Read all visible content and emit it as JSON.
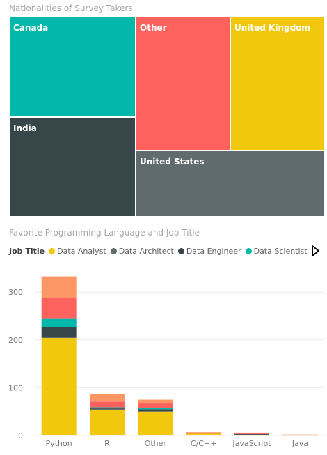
{
  "treemap": {
    "title": "Nationalities of Survey Takers",
    "tiles": [
      {
        "name": "Canada",
        "color": "#01b8aa"
      },
      {
        "name": "India",
        "color": "#374649"
      },
      {
        "name": "Other",
        "color": "#fd625e"
      },
      {
        "name": "United Kingdom",
        "color": "#f2c80f"
      },
      {
        "name": "United States",
        "color": "#5f6b6d"
      }
    ]
  },
  "legend": {
    "title": "Job Title",
    "items": [
      {
        "label": "Data Analyst",
        "color": "#f2c80f"
      },
      {
        "label": "Data Architect",
        "color": "#5f6b6d"
      },
      {
        "label": "Data Engineer",
        "color": "#374649"
      },
      {
        "label": "Data Scientist",
        "color": "#01b8aa"
      }
    ]
  },
  "chart_data": {
    "type": "bar",
    "stacked": true,
    "title": "Favorite Programming Language and Job Title",
    "legend_title": "Job Title",
    "legend_position": "top-left",
    "grid": true,
    "ylim": [
      0,
      340
    ],
    "yticks": [
      0,
      100,
      200,
      300
    ],
    "categories": [
      "Python",
      "R",
      "Other",
      "C/C++",
      "JavaScript",
      "Java"
    ],
    "series": [
      {
        "name": "Data Analyst",
        "color": "#f2c80f",
        "values": [
          204,
          54,
          50,
          4,
          1,
          0
        ]
      },
      {
        "name": "Data Architect",
        "color": "#5f6b6d",
        "values": [
          2,
          2,
          1,
          0,
          1,
          0
        ]
      },
      {
        "name": "Data Engineer",
        "color": "#374649",
        "values": [
          20,
          2,
          4,
          0,
          1,
          0
        ]
      },
      {
        "name": "Data Scientist",
        "color": "#01b8aa",
        "values": [
          18,
          1,
          2,
          0,
          0,
          0
        ]
      },
      {
        "color": "#fd625e",
        "values": [
          44,
          12,
          10,
          1,
          2,
          1
        ]
      },
      {
        "color": "#fe9666",
        "values": [
          45,
          15,
          8,
          2,
          1,
          1
        ]
      }
    ]
  }
}
